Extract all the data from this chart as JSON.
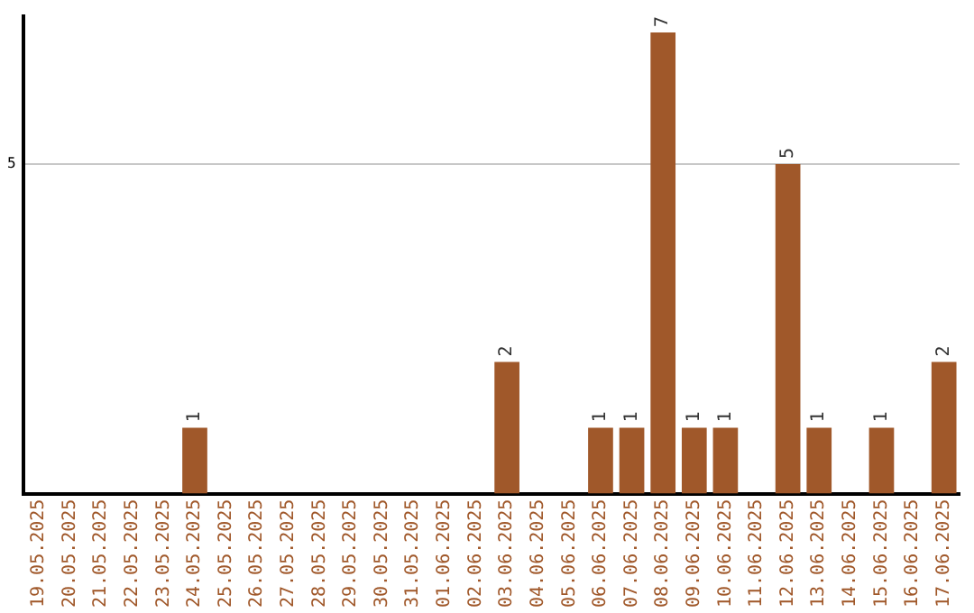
{
  "chart_data": {
    "type": "bar",
    "categories": [
      "19.05.2025",
      "20.05.2025",
      "21.05.2025",
      "22.05.2025",
      "23.05.2025",
      "24.05.2025",
      "25.05.2025",
      "26.05.2025",
      "27.05.2025",
      "28.05.2025",
      "29.05.2025",
      "30.05.2025",
      "31.05.2025",
      "01.06.2025",
      "02.06.2025",
      "03.06.2025",
      "04.06.2025",
      "05.06.2025",
      "06.06.2025",
      "07.06.2025",
      "08.06.2025",
      "09.06.2025",
      "10.06.2025",
      "11.06.2025",
      "12.06.2025",
      "13.06.2025",
      "14.06.2025",
      "15.06.2025",
      "16.06.2025",
      "17.06.2025"
    ],
    "values": [
      0,
      0,
      0,
      0,
      0,
      1,
      0,
      0,
      0,
      0,
      0,
      0,
      0,
      0,
      0,
      2,
      0,
      0,
      1,
      1,
      7,
      1,
      1,
      0,
      5,
      1,
      0,
      1,
      0,
      2
    ],
    "value_labels": [
      null,
      null,
      null,
      null,
      null,
      "1",
      null,
      null,
      null,
      null,
      null,
      null,
      null,
      null,
      null,
      "2",
      null,
      null,
      "1",
      "1",
      "7",
      "1",
      "1",
      null,
      "5",
      "1",
      null,
      "1",
      null,
      "2"
    ],
    "color": "#a0582a",
    "ylim": [
      0,
      7.25
    ],
    "yticks": [
      5
    ],
    "grid": "y",
    "legend": false
  }
}
